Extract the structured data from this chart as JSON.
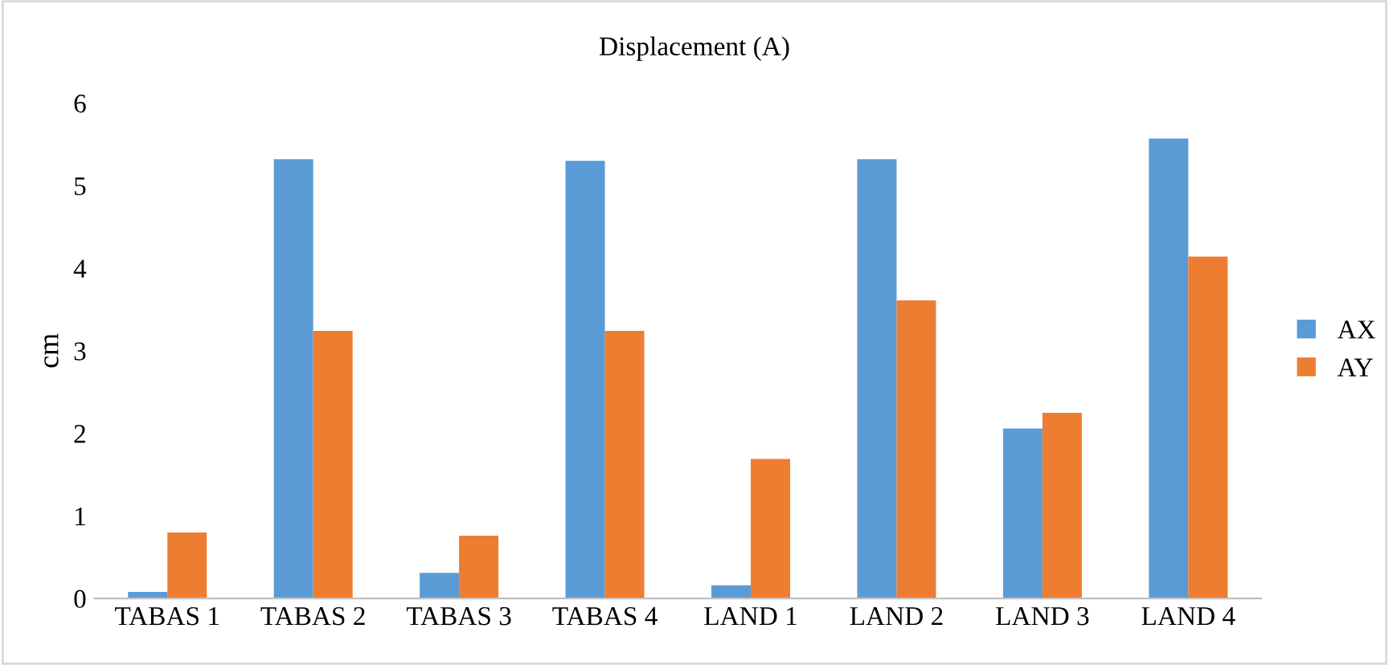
{
  "chart_data": {
    "type": "bar",
    "title": "Displacement (A)",
    "ylabel": "cm",
    "categories": [
      "TABAS 1",
      "TABAS 2",
      "TABAS 3",
      "TABAS 4",
      "LAND 1",
      "LAND 2",
      "LAND 3",
      "LAND 4"
    ],
    "series": [
      {
        "name": "AX",
        "color": "#5b9bd5",
        "values": [
          0.08,
          5.32,
          0.31,
          5.3,
          0.16,
          5.32,
          2.06,
          5.57
        ]
      },
      {
        "name": "AY",
        "color": "#ed7d31",
        "values": [
          0.8,
          3.24,
          0.76,
          3.24,
          1.69,
          3.61,
          2.25,
          4.14
        ]
      }
    ],
    "ylim": [
      0,
      6
    ],
    "yticks": [
      0,
      1,
      2,
      3,
      4,
      5,
      6
    ],
    "grid": false,
    "legend": "right"
  }
}
